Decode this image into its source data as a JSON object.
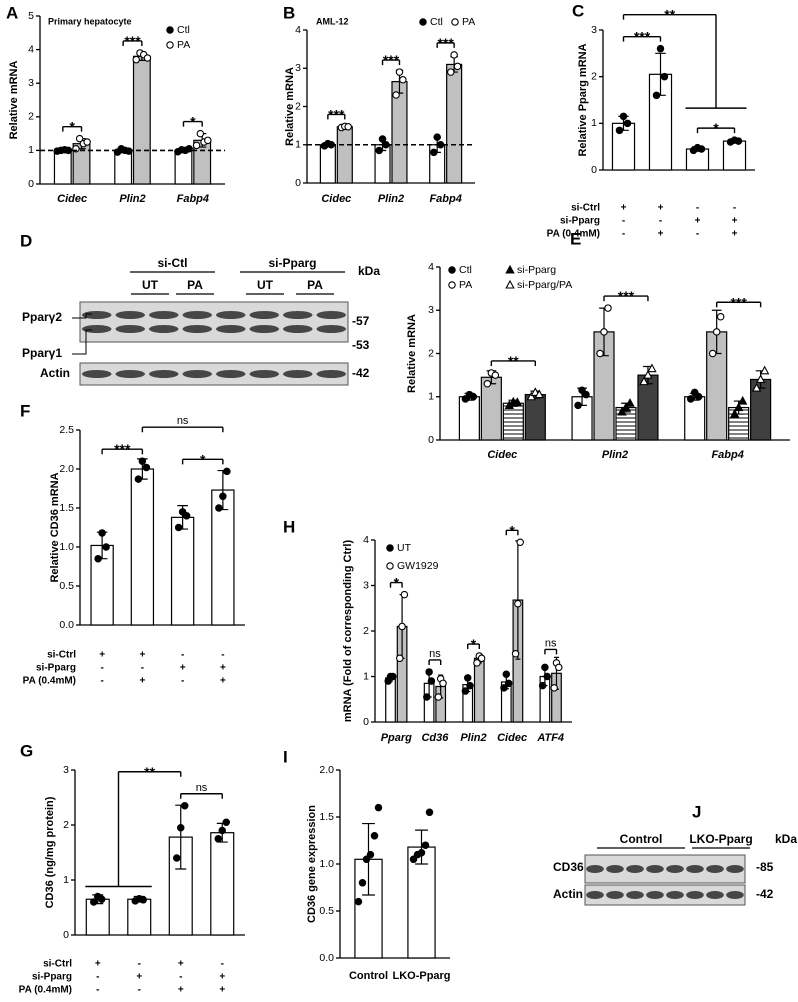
{
  "chart_data": [
    {
      "type": "bar",
      "panel": "A",
      "title": "Primary hepatocyte",
      "ylabel": "Relative mRNA",
      "categories": [
        "Cidec",
        "Plin2",
        "Fabp4"
      ],
      "italic_categories": true,
      "series": [
        {
          "name": "Ctl",
          "color": "#ffffff",
          "marker": "circle",
          "marker_fill": true,
          "values": [
            1.0,
            1.0,
            1.0
          ],
          "errors": [
            0.05,
            0.07,
            0.06
          ],
          "points": [
            [
              0.98,
              1.0,
              1.02,
              1.0
            ],
            [
              0.95,
              1.05,
              1.0,
              0.98
            ],
            [
              0.96,
              1.02,
              1.0,
              1.05
            ]
          ]
        },
        {
          "name": "PA",
          "color": "#c0c0c0",
          "marker": "circle",
          "marker_fill": false,
          "values": [
            1.2,
            3.8,
            1.3
          ],
          "errors": [
            0.15,
            0.12,
            0.2
          ],
          "points": [
            [
              1.05,
              1.35,
              1.2,
              1.25
            ],
            [
              3.7,
              3.9,
              3.85,
              3.75
            ],
            [
              1.15,
              1.5,
              1.25,
              1.3
            ]
          ]
        }
      ],
      "ylim": [
        0,
        5
      ],
      "yticks": [
        0,
        1,
        2,
        3,
        4,
        5
      ],
      "refline": 1,
      "annotations": [
        {
          "text": "*",
          "from": 0,
          "to": 1
        },
        {
          "text": "***",
          "from": 2,
          "to": 3
        },
        {
          "text": "*",
          "from": 4,
          "to": 5
        }
      ]
    },
    {
      "type": "bar",
      "panel": "B",
      "title": "AML-12",
      "ylabel": "Relative mRNA",
      "categories": [
        "Cidec",
        "Plin2",
        "Fabp4"
      ],
      "italic_categories": true,
      "series": [
        {
          "name": "Ctl",
          "color": "#ffffff",
          "marker": "circle",
          "marker_fill": true,
          "values": [
            1.0,
            1.0,
            1.0
          ],
          "errors": [
            0.05,
            0.15,
            0.2
          ],
          "points": [
            [
              0.97,
              1.03,
              1.0
            ],
            [
              0.85,
              1.15,
              1.0
            ],
            [
              0.8,
              1.2,
              1.0
            ]
          ]
        },
        {
          "name": "PA",
          "color": "#c0c0c0",
          "marker": "circle",
          "marker_fill": false,
          "values": [
            1.47,
            2.65,
            3.1
          ],
          "errors": [
            0.03,
            0.3,
            0.2
          ],
          "points": [
            [
              1.45,
              1.48,
              1.47
            ],
            [
              2.3,
              2.9,
              2.7
            ],
            [
              2.9,
              3.35,
              3.05
            ]
          ]
        }
      ],
      "ylim": [
        0,
        4
      ],
      "yticks": [
        0,
        1,
        2,
        3,
        4
      ],
      "refline": 1,
      "annotations": [
        {
          "text": "***",
          "from": 0,
          "to": 1
        },
        {
          "text": "***",
          "from": 2,
          "to": 3
        },
        {
          "text": "***",
          "from": 4,
          "to": 5
        }
      ]
    },
    {
      "type": "bar",
      "panel": "C",
      "ylabel": "Relative Pparg mRNA",
      "categories": [
        null,
        null,
        null,
        null
      ],
      "color": "#ffffff",
      "marker": "circle",
      "marker_fill": true,
      "values": [
        1.0,
        2.05,
        0.45,
        0.62
      ],
      "errors": [
        0.15,
        0.45,
        0.05,
        0.03
      ],
      "points": [
        [
          0.85,
          1.15,
          1.0
        ],
        [
          1.6,
          2.6,
          2.0
        ],
        [
          0.42,
          0.48,
          0.45
        ],
        [
          0.6,
          0.64,
          0.62
        ]
      ],
      "ylim": [
        0,
        3
      ],
      "yticks": [
        0,
        1,
        2,
        3
      ],
      "conditions": [
        {
          "label": "si-Ctrl",
          "values": [
            "+",
            "+",
            "-",
            "-"
          ]
        },
        {
          "label": "si-Pparg",
          "values": [
            "-",
            "-",
            "+",
            "+"
          ]
        },
        {
          "label": "PA (0.4mM)",
          "values": [
            "-",
            "+",
            "-",
            "+"
          ]
        }
      ],
      "annotations": [
        {
          "text": "***",
          "from": 0,
          "to": 1
        },
        {
          "text": "*",
          "from": 2,
          "to": 3
        },
        {
          "text": "**",
          "from": 0,
          "to": [
            2,
            3
          ]
        }
      ]
    },
    {
      "type": "bar",
      "panel": "E",
      "ylabel": "Relative mRNA",
      "categories": [
        "Cidec",
        "Plin2",
        "Fabp4"
      ],
      "italic_categories": true,
      "series": [
        {
          "name": "Ctl",
          "color": "#ffffff",
          "marker": "circle",
          "marker_fill": true,
          "values": [
            1.0,
            1.0,
            1.0
          ],
          "errors": [
            0.08,
            0.2,
            0.08
          ],
          "points": [
            [
              0.95,
              1.05,
              1.0
            ],
            [
              0.8,
              1.15,
              1.05
            ],
            [
              0.95,
              1.1,
              1.0
            ]
          ]
        },
        {
          "name": "PA",
          "color": "#c0c0c0",
          "marker": "circle",
          "marker_fill": false,
          "values": [
            1.45,
            2.5,
            2.5
          ],
          "errors": [
            0.15,
            0.55,
            0.5
          ],
          "points": [
            [
              1.3,
              1.55,
              1.5
            ],
            [
              2.0,
              2.5,
              3.05
            ],
            [
              2.0,
              2.5,
              2.85
            ]
          ]
        },
        {
          "name": "si-Pparg",
          "color": "#ffffff",
          "pattern": "stripes",
          "marker": "triangle",
          "marker_fill": true,
          "values": [
            0.85,
            0.75,
            0.75
          ],
          "errors": [
            0.07,
            0.1,
            0.15
          ],
          "points": [
            [
              0.8,
              0.88,
              0.87
            ],
            [
              0.65,
              0.75,
              0.85
            ],
            [
              0.6,
              0.75,
              0.9
            ]
          ]
        },
        {
          "name": "si-Pparg/PA",
          "color": "#404040",
          "marker": "triangle",
          "marker_fill": false,
          "values": [
            1.05,
            1.5,
            1.4
          ],
          "errors": [
            0.08,
            0.2,
            0.2
          ],
          "points": [
            [
              1.0,
              1.1,
              1.05
            ],
            [
              1.35,
              1.5,
              1.65
            ],
            [
              1.2,
              1.4,
              1.6
            ]
          ]
        }
      ],
      "ylim": [
        0,
        4
      ],
      "yticks": [
        0,
        1,
        2,
        3,
        4
      ],
      "annotations": [
        {
          "text": "**",
          "from": 1,
          "to": 3
        },
        {
          "text": "***",
          "from": 5,
          "to": 7
        },
        {
          "text": "***",
          "from": 9,
          "to": 11
        }
      ]
    },
    {
      "type": "bar",
      "panel": "F",
      "ylabel": "Relative CD36 mRNA",
      "categories": [
        null,
        null,
        null,
        null
      ],
      "color": "#ffffff",
      "marker": "circle",
      "marker_fill": true,
      "values": [
        1.02,
        2.0,
        1.38,
        1.73
      ],
      "errors": [
        0.17,
        0.13,
        0.15,
        0.25
      ],
      "points": [
        [
          0.85,
          1.18,
          1.0
        ],
        [
          1.87,
          2.1,
          2.02
        ],
        [
          1.25,
          1.45,
          1.4
        ],
        [
          1.5,
          1.65,
          1.97
        ]
      ],
      "ylim": [
        0,
        2.5
      ],
      "yticks": [
        {
          "value": 0,
          "label": "0.0"
        },
        0.5,
        {
          "value": 1,
          "label": "1.0"
        },
        1.5,
        {
          "value": 2,
          "label": "2.0"
        },
        2.5
      ],
      "conditions": [
        {
          "label": "si-Ctrl",
          "values": [
            "+",
            "+",
            "-",
            "-"
          ]
        },
        {
          "label": "si-Pparg",
          "values": [
            "-",
            "-",
            "+",
            "+"
          ]
        },
        {
          "label": "PA (0.4mM)",
          "values": [
            "-",
            "+",
            "-",
            "+"
          ]
        }
      ],
      "annotations": [
        {
          "text": "***",
          "from": 0,
          "to": 1
        },
        {
          "text": "*",
          "from": 2,
          "to": 3
        },
        {
          "text": "ns",
          "from": 1,
          "to": 3
        }
      ]
    },
    {
      "type": "bar",
      "panel": "G",
      "ylabel": "CD36 (ng/mg protein)",
      "categories": [
        null,
        null,
        null,
        null
      ],
      "color": "#ffffff",
      "marker": "circle",
      "marker_fill": true,
      "values": [
        0.65,
        0.65,
        1.78,
        1.86
      ],
      "errors": [
        0.08,
        0.05,
        0.58,
        0.17
      ],
      "points": [
        [
          0.6,
          0.7,
          0.65
        ],
        [
          0.62,
          0.66,
          0.64
        ],
        [
          1.4,
          1.95,
          2.35
        ],
        [
          1.75,
          1.9,
          2.05
        ]
      ],
      "ylim": [
        0,
        3
      ],
      "yticks": [
        0,
        1,
        2,
        3
      ],
      "conditions": [
        {
          "label": "si-Ctrl",
          "values": [
            "+",
            "-",
            "+",
            "-"
          ]
        },
        {
          "label": "si-Pparg",
          "values": [
            "-",
            "+",
            "-",
            "+"
          ]
        },
        {
          "label": "PA (0.4mM)",
          "values": [
            "-",
            "-",
            "+",
            "+"
          ]
        }
      ],
      "annotations": [
        {
          "text": "ns",
          "from": 2,
          "to": 3
        },
        {
          "text": "**",
          "from": [
            0,
            1
          ],
          "to": 2
        }
      ]
    },
    {
      "type": "bar",
      "panel": "H",
      "ylabel": "mRNA (Fold of corresponding Ctrl)",
      "categories": [
        "Pparg",
        "Cd36",
        "Plin2",
        "Cidec",
        "ATF4"
      ],
      "italic_categories": true,
      "series": [
        {
          "name": "UT",
          "color": "#ffffff",
          "marker": "circle",
          "marker_fill": true,
          "values": [
            0.97,
            0.85,
            0.82,
            0.88,
            1.0
          ],
          "errors": [
            0.07,
            0.3,
            0.15,
            0.15,
            0.2
          ],
          "points": [
            [
              0.9,
              1.0,
              1.0
            ],
            [
              0.55,
              1.1,
              0.9
            ],
            [
              0.68,
              0.97,
              0.8
            ],
            [
              0.75,
              1.05,
              0.85
            ],
            [
              0.8,
              1.2,
              1.0
            ]
          ]
        },
        {
          "name": "GW1929",
          "color": "#c0c0c0",
          "marker": "circle",
          "marker_fill": false,
          "values": [
            2.1,
            0.78,
            1.4,
            2.68,
            1.07
          ],
          "errors": [
            0.7,
            0.25,
            0.1,
            1.3,
            0.35
          ],
          "points": [
            [
              1.4,
              2.1,
              2.8
            ],
            [
              0.55,
              0.95,
              0.85
            ],
            [
              1.3,
              1.45,
              1.4
            ],
            [
              1.5,
              2.6,
              3.95
            ],
            [
              0.75,
              1.3,
              1.2
            ]
          ]
        }
      ],
      "ylim": [
        0,
        4
      ],
      "yticks": [
        0,
        1,
        2,
        3,
        4
      ],
      "annotations": [
        {
          "text": "*",
          "from": 0,
          "to": 1
        },
        {
          "text": "ns",
          "from": 2,
          "to": 3
        },
        {
          "text": "*",
          "from": 4,
          "to": 5
        },
        {
          "text": "*",
          "from": 6,
          "to": 7
        },
        {
          "text": "ns",
          "from": 8,
          "to": 9
        }
      ]
    },
    {
      "type": "bar",
      "panel": "I",
      "ylabel": "CD36 gene expression",
      "categories": [
        "Control",
        "LKO-Pparg"
      ],
      "color": "#ffffff",
      "marker": "circle",
      "marker_fill": true,
      "values": [
        1.05,
        1.18
      ],
      "errors": [
        0.38,
        0.18
      ],
      "points": [
        [
          0.6,
          0.8,
          1.05,
          1.1,
          1.3,
          1.6
        ],
        [
          1.05,
          1.1,
          1.12,
          1.2,
          1.55
        ]
      ],
      "ylim": [
        0,
        2
      ],
      "yticks": [
        {
          "value": 0,
          "label": "0.0"
        },
        0.5,
        {
          "value": 1,
          "label": "1.0"
        },
        1.5,
        {
          "value": 2,
          "label": "2.0"
        }
      ]
    }
  ],
  "blots": [
    {
      "panel": "D",
      "groups": [
        "si-Ctl",
        "si-Pparg"
      ],
      "lanes": [
        "UT",
        "PA",
        "UT",
        "PA"
      ],
      "unit": "kDa",
      "rows": [
        {
          "labels": [
            "Pparγ2",
            "Pparγ1"
          ],
          "markers": [
            "-57",
            "-53"
          ]
        },
        {
          "labels": [
            "Actin"
          ],
          "markers": [
            "-42"
          ]
        }
      ]
    },
    {
      "panel": "J",
      "groups": [
        "Control",
        "LKO-Pparg"
      ],
      "unit": "kDa",
      "rows": [
        {
          "labels": [
            "CD36"
          ],
          "markers": [
            "-85"
          ]
        },
        {
          "labels": [
            "Actin"
          ],
          "markers": [
            "-42"
          ]
        }
      ]
    }
  ]
}
